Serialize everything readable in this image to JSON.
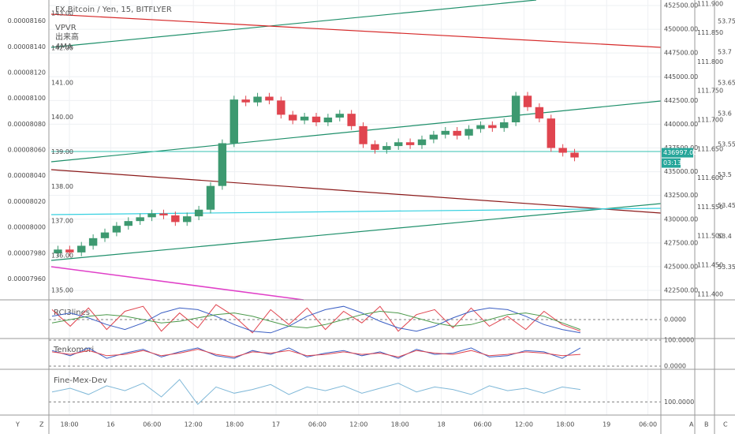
{
  "chart_data": {
    "type": "candlestick",
    "title": "FX Bitcoin / Yen, 15, BITFLYER",
    "legend": [
      "VPVR",
      "出来高",
      "4MA"
    ],
    "up_color": "#3d9970",
    "down_color": "#e0454f",
    "open": [
      426400,
      426800,
      426500,
      427200,
      428000,
      428600,
      429300,
      429800,
      430200,
      430600,
      430400,
      429700,
      430300,
      431000,
      433500,
      438000,
      442600,
      442300,
      442900,
      442500,
      441000,
      440400,
      440800,
      440200,
      440700,
      441100,
      439800,
      437900,
      437300,
      437700,
      438100,
      437800,
      438400,
      438900,
      439300,
      438800,
      439500,
      439900,
      439600,
      440200,
      443000,
      441800,
      440600,
      437500,
      437000
    ],
    "high": [
      427200,
      427200,
      427600,
      428400,
      429000,
      429700,
      430200,
      430600,
      431000,
      431000,
      430800,
      430700,
      431400,
      433900,
      438400,
      443000,
      443000,
      443300,
      443300,
      442900,
      441400,
      441200,
      441200,
      441100,
      441500,
      441500,
      440200,
      438300,
      438100,
      438500,
      438500,
      438800,
      439300,
      439700,
      439700,
      439900,
      440300,
      440300,
      440600,
      443400,
      443400,
      442200,
      441000,
      437900,
      437400
    ],
    "low": [
      426000,
      426100,
      426100,
      426800,
      427600,
      428200,
      428900,
      429400,
      429800,
      430000,
      429300,
      429300,
      429900,
      430600,
      433100,
      437600,
      441900,
      441900,
      442100,
      440600,
      440000,
      440000,
      439800,
      439800,
      440300,
      439400,
      437500,
      436900,
      436900,
      437300,
      437400,
      437400,
      438000,
      438500,
      438400,
      438400,
      439100,
      439200,
      439200,
      439800,
      441400,
      440200,
      437100,
      436600,
      436100
    ],
    "close": [
      426800,
      426500,
      427200,
      428000,
      428600,
      429300,
      429800,
      430200,
      430600,
      430400,
      429700,
      430300,
      431000,
      433500,
      438000,
      442600,
      442300,
      442900,
      442500,
      441000,
      440400,
      440800,
      440200,
      440700,
      441100,
      439800,
      437900,
      437300,
      437700,
      438100,
      437800,
      438400,
      438900,
      439300,
      438800,
      439500,
      439900,
      439600,
      440200,
      443000,
      441800,
      440600,
      437500,
      437000,
      436500
    ],
    "ylim": [
      421670,
      452500
    ],
    "yticks": [
      {
        "value": 422500,
        "label": "422500.00"
      },
      {
        "value": 425000,
        "label": "425000.00"
      },
      {
        "value": 427500,
        "label": "427500.00"
      },
      {
        "value": 430000,
        "label": "430000.00"
      },
      {
        "value": 432500,
        "label": "432500.00"
      },
      {
        "value": 435000,
        "label": "435000.00"
      },
      {
        "value": 437500,
        "label": "437500.00"
      },
      {
        "value": 440000,
        "label": "440000.00"
      },
      {
        "value": 442500,
        "label": "442500.00"
      },
      {
        "value": 445000,
        "label": "445000.00"
      },
      {
        "value": 447500,
        "label": "447500.00"
      },
      {
        "value": 450000,
        "label": "450000.00"
      },
      {
        "value": 452500,
        "label": "452500.00"
      }
    ],
    "grid": true,
    "last_price": {
      "value": 436997,
      "label": "436997.00"
    },
    "countdown": "03:13",
    "extra_axes": [
      {
        "ylim": [
          7.945e-05,
          8.172e-05
        ],
        "yticks": [
          {
            "value": 7.96e-05,
            "label": "0.00007960"
          },
          {
            "value": 7.98e-05,
            "label": "0.00007980"
          },
          {
            "value": 8e-05,
            "label": "0.00008000"
          },
          {
            "value": 8.02e-05,
            "label": "0.00008020"
          },
          {
            "value": 8.04e-05,
            "label": "0.00008040"
          },
          {
            "value": 8.06e-05,
            "label": "0.00008060"
          },
          {
            "value": 8.08e-05,
            "label": "0.00008080"
          },
          {
            "value": 8.1e-05,
            "label": "0.00008100"
          },
          {
            "value": 8.12e-05,
            "label": "0.00008120"
          },
          {
            "value": 8.14e-05,
            "label": "0.00008140"
          },
          {
            "value": 8.16e-05,
            "label": "0.00008160"
          }
        ]
      },
      {
        "ylim": [
          134.77,
          143.23
        ],
        "yticks": [
          {
            "value": 135,
            "label": "135.00"
          },
          {
            "value": 136,
            "label": "136.00"
          },
          {
            "value": 137,
            "label": "137.00"
          },
          {
            "value": 138,
            "label": "138.00"
          },
          {
            "value": 139,
            "label": "139.00"
          },
          {
            "value": 140,
            "label": "140.00"
          },
          {
            "value": 141,
            "label": "141.00"
          },
          {
            "value": 142,
            "label": "142.00"
          },
          {
            "value": 143,
            "label": "143.00"
          }
        ]
      },
      {
        "ylim": [
          111.393,
          111.897
        ],
        "yticks": [
          {
            "value": 111.4,
            "label": "111.400"
          },
          {
            "value": 111.45,
            "label": "111.450"
          },
          {
            "value": 111.5,
            "label": "111.500"
          },
          {
            "value": 111.55,
            "label": "111.550"
          },
          {
            "value": 111.6,
            "label": "111.600"
          },
          {
            "value": 111.65,
            "label": "111.650"
          },
          {
            "value": 111.7,
            "label": "111.700"
          },
          {
            "value": 111.75,
            "label": "111.750"
          },
          {
            "value": 111.8,
            "label": "111.800"
          },
          {
            "value": 111.85,
            "label": "111.850"
          },
          {
            "value": 111.9,
            "label": "111.900"
          }
        ]
      },
      {
        "ylim": [
          53.299,
          53.776
        ],
        "yticks": [
          53.35,
          53.4,
          53.45,
          53.5,
          53.55,
          53.6,
          53.65,
          53.7,
          53.75
        ]
      }
    ],
    "time_labels": [
      "18:00",
      "16",
      "06:00",
      "12:00",
      "18:00",
      "17",
      "06:00",
      "12:00",
      "18:00",
      "18",
      "06:00",
      "12:00",
      "18:00",
      "19",
      "06:00"
    ],
    "indicators": [
      {
        "name": "RCI3lines",
        "ylim": [
          -100,
          100
        ],
        "yticks": [
          {
            "value": 0,
            "label": "0.0000"
          }
        ],
        "series": [
          {
            "color": "#e0454f",
            "values": [
              60,
              -40,
              70,
              -60,
              50,
              80,
              -70,
              40,
              -50,
              90,
              20,
              -80,
              60,
              -30,
              70,
              -60,
              50,
              -20,
              80,
              -70,
              30,
              60,
              -50,
              70,
              -40,
              20,
              -60,
              50,
              -30,
              -70
            ]
          },
          {
            "color": "#3b5fc4",
            "values": [
              20,
              40,
              10,
              -30,
              -60,
              -20,
              40,
              70,
              60,
              20,
              -30,
              -70,
              -80,
              -40,
              20,
              60,
              80,
              40,
              -10,
              -50,
              -70,
              -40,
              10,
              50,
              70,
              60,
              20,
              -30,
              -60,
              -80
            ]
          },
          {
            "color": "#4c9a4c",
            "values": [
              -20,
              0,
              20,
              30,
              20,
              0,
              -20,
              -10,
              10,
              30,
              40,
              20,
              -10,
              -40,
              -50,
              -30,
              0,
              30,
              50,
              40,
              10,
              -20,
              -40,
              -30,
              0,
              30,
              40,
              20,
              -20,
              -60
            ]
          }
        ]
      },
      {
        "name": "Tenkomori",
        "ylim": [
          0,
          100
        ],
        "yticks": [
          {
            "value": 0,
            "label": "0.0000"
          },
          {
            "value": 100,
            "label": "100.0000"
          }
        ],
        "series": [
          {
            "color": "#3b5fc4",
            "values": [
              60,
              40,
              70,
              30,
              50,
              65,
              35,
              55,
              70,
              40,
              30,
              60,
              45,
              70,
              35,
              50,
              60,
              40,
              55,
              30,
              65,
              45,
              50,
              70,
              35,
              40,
              60,
              55,
              30,
              70
            ]
          },
          {
            "color": "#e0454f",
            "values": [
              55,
              45,
              60,
              40,
              45,
              60,
              40,
              50,
              65,
              45,
              35,
              55,
              50,
              60,
              40,
              45,
              55,
              45,
              50,
              35,
              60,
              50,
              45,
              60,
              40,
              45,
              55,
              50,
              40,
              45
            ]
          }
        ]
      },
      {
        "name": "Fine-Mex-Dev",
        "ylim": [
          90,
          125
        ],
        "yticks": [
          {
            "value": 100,
            "label": "100.0000"
          }
        ],
        "series": [
          {
            "color": "#7fb8d8",
            "values": [
              108,
              111,
              106,
              113,
              109,
              115,
              104,
              118,
              98,
              112,
              107,
              110,
              114,
              106,
              112,
              109,
              113,
              107,
              111,
              115,
              108,
              112,
              110,
              106,
              113,
              109,
              111,
              107,
              112,
              110
            ]
          }
        ]
      }
    ]
  }
}
